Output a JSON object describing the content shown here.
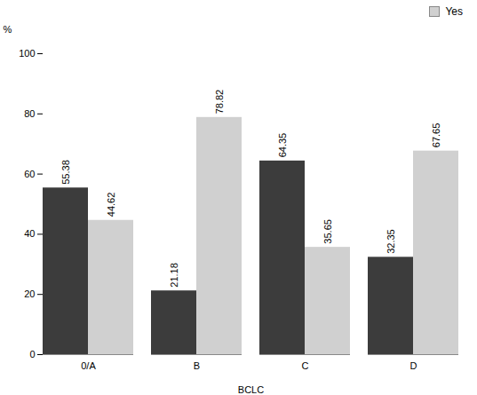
{
  "chart_data": {
    "type": "bar",
    "categories": [
      "0/A",
      "B",
      "C",
      "D"
    ],
    "series": [
      {
        "color": "#3c3c3c",
        "values": [
          55.38,
          21.18,
          64.35,
          32.35
        ]
      },
      {
        "name": "Yes",
        "color": "#d0d0d0",
        "values": [
          44.62,
          78.82,
          35.65,
          67.65
        ]
      }
    ],
    "xlabel": "BCLC",
    "ylabel": "%",
    "ylim": [
      0,
      100
    ],
    "yticks": [
      0,
      20,
      40,
      60,
      80,
      100
    ],
    "legend": "upper right",
    "data_labels": true
  }
}
